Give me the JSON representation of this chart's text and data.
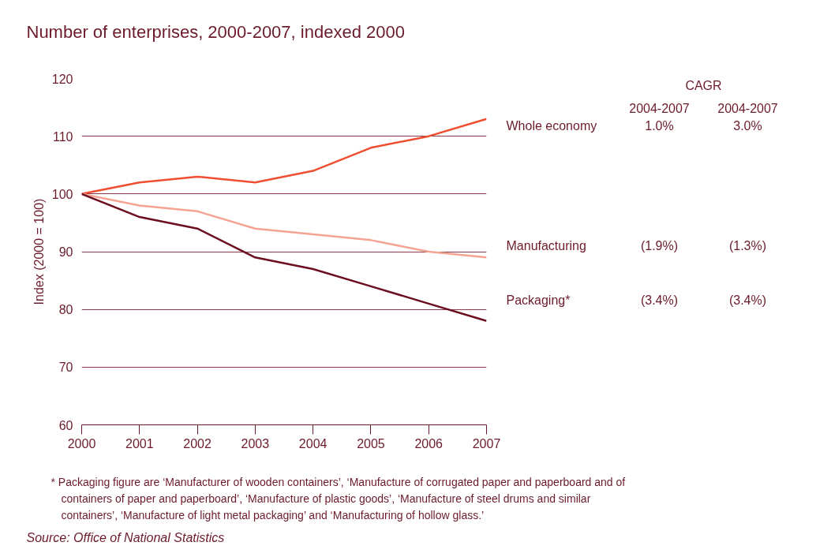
{
  "chart_data": {
    "type": "line",
    "title": "Number of enterprises, 2000-2007, indexed 2000",
    "ylabel": "Index (2000 = 100)",
    "x": [
      2000,
      2001,
      2002,
      2003,
      2004,
      2005,
      2006,
      2007
    ],
    "xlim": [
      2000,
      2007
    ],
    "xticks": [
      2000,
      2001,
      2002,
      2003,
      2004,
      2005,
      2006,
      2007
    ],
    "ylim": [
      60,
      120
    ],
    "yticks": [
      60,
      70,
      80,
      90,
      100,
      110,
      120
    ],
    "grid": "y",
    "series": [
      {
        "name": "Whole economy",
        "color": "#f04e30",
        "values": [
          100,
          102,
          103,
          102,
          104,
          108,
          110,
          113
        ]
      },
      {
        "name": "Manufacturing",
        "color": "#f5a493",
        "values": [
          100,
          98,
          97,
          94,
          93,
          92,
          90,
          89
        ]
      },
      {
        "name": "Packaging*",
        "color": "#6b0f1f",
        "values": [
          100,
          96,
          94,
          89,
          87,
          84,
          81,
          78
        ]
      }
    ],
    "annotations": [
      "CAGR",
      "2004-2007",
      "2004-2007",
      "1.0%",
      "3.0%",
      "(1.9%)",
      "(1.3%)",
      "(3.4%)",
      "(3.4%)",
      "* Packaging figure are ‘Manufacturer of wooden containers’, ‘Manufacture of corrugated paper and paperboard and of containers of paper and paperboard’, ‘Manufacture of plastic goods’, ‘Manufacture of steel drums and similar containers’, ‘Manufacture of light metal packaging’ and ‘Manufacturing of hollow glass.’",
      "Source: Office of National Statistics"
    ]
  }
}
